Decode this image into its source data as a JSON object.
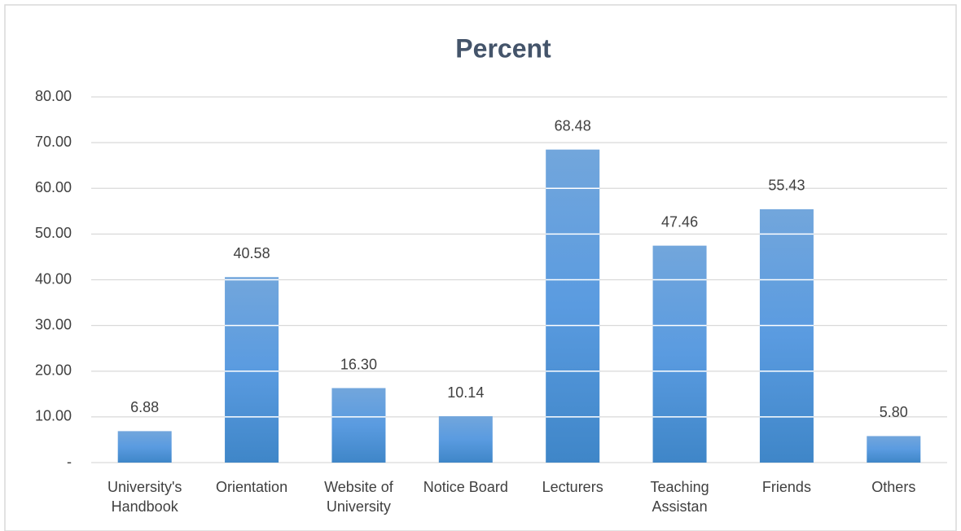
{
  "chart_data": {
    "type": "bar",
    "title": "Percent",
    "categories": [
      "University's Handbook",
      "Orientation",
      "Website of University",
      "Notice Board",
      "Lecturers",
      "Teaching Assistan",
      "Friends",
      "Others"
    ],
    "values": [
      6.88,
      40.58,
      16.3,
      10.14,
      68.48,
      47.46,
      55.43,
      5.8
    ],
    "value_labels": [
      "6.88",
      "40.58",
      "16.30",
      "10.14",
      "68.48",
      "47.46",
      "55.43",
      "5.80"
    ],
    "color": "#5b9bd5",
    "ylim": [
      0,
      80
    ],
    "yticks": [
      {
        "value": 0,
        "label": "-"
      },
      {
        "value": 10,
        "label": "10.00"
      },
      {
        "value": 20,
        "label": "20.00"
      },
      {
        "value": 30,
        "label": "30.00"
      },
      {
        "value": 40,
        "label": "40.00"
      },
      {
        "value": 50,
        "label": "50.00"
      },
      {
        "value": 60,
        "label": "60.00"
      },
      {
        "value": 70,
        "label": "70.00"
      },
      {
        "value": 80,
        "label": "80.00"
      }
    ],
    "grid": true
  }
}
